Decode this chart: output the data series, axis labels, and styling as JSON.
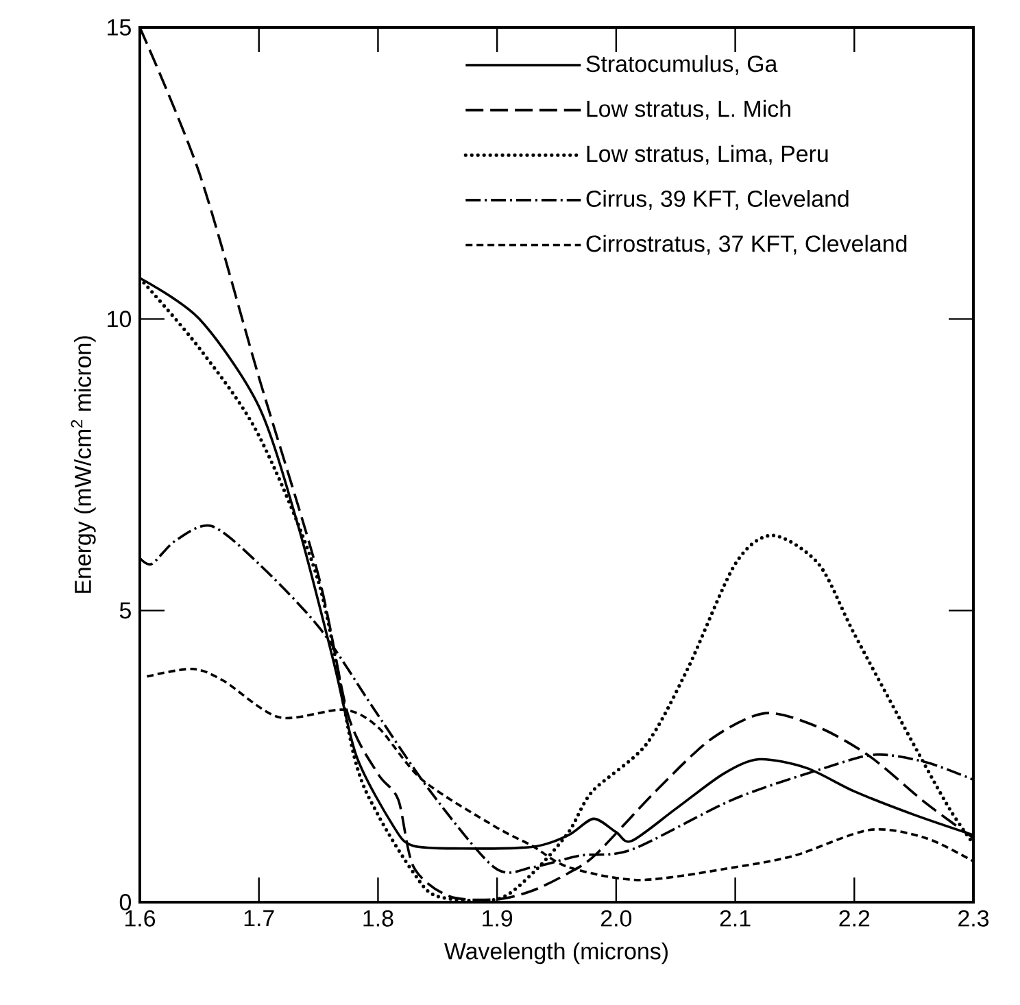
{
  "chart_data": {
    "type": "line",
    "xlabel": "Wavelength (microns)",
    "ylabel": "Energy (mW/cm$^{2}$ micron)",
    "xlim": [
      1.6,
      2.3
    ],
    "ylim": [
      0,
      15
    ],
    "xticks": [
      1.6,
      1.7,
      1.8,
      1.9,
      {
        "value": 2.0,
        "label": "2.0"
      },
      2.1,
      2.2,
      2.3
    ],
    "yticks": [
      0,
      5,
      10,
      15
    ],
    "legend": "top right",
    "grid": false,
    "tick_labels": "xy",
    "series": [
      {
        "name": "Stratocumulus, Ga",
        "color": "#000000",
        "line_style": "solid",
        "x": [
          1.6,
          1.65,
          1.7,
          1.733,
          1.763,
          1.782,
          1.813,
          1.829,
          1.87,
          1.93,
          1.96,
          1.981,
          2.0,
          2.013,
          2.05,
          2.09,
          2.12,
          2.16,
          2.2,
          2.25,
          2.3
        ],
        "values": [
          10.7,
          10.0,
          8.5,
          6.45,
          4.1,
          2.5,
          1.3,
          0.97,
          0.92,
          0.95,
          1.15,
          1.43,
          1.2,
          1.05,
          1.6,
          2.2,
          2.45,
          2.3,
          1.9,
          1.5,
          1.15
        ]
      },
      {
        "name": "Low stratus, L. Mich",
        "color": "#000000",
        "line_style": "long dashed",
        "x": [
          1.6,
          1.65,
          1.7,
          1.75,
          1.775,
          1.8,
          1.817,
          1.83,
          1.86,
          1.9,
          1.93,
          1.96,
          1.983,
          2.033,
          2.08,
          2.125,
          2.17,
          2.213,
          2.26,
          2.3
        ],
        "values": [
          15,
          12.5,
          9,
          5.6,
          3.2,
          2.2,
          1.76,
          0.6,
          0.1,
          0.05,
          0.2,
          0.5,
          0.82,
          1.9,
          2.8,
          3.24,
          3.0,
          2.5,
          1.7,
          1.1
        ]
      },
      {
        "name": "Low stratus, Lima, Peru",
        "color": "#000000",
        "line_style": "dotted",
        "x": [
          1.6,
          1.65,
          1.7,
          1.75,
          1.78,
          1.8,
          1.83,
          1.85,
          1.9,
          1.93,
          1.96,
          1.98,
          2.025,
          2.06,
          2.1,
          2.131,
          2.17,
          2.2,
          2.25,
          2.28,
          2.3
        ],
        "values": [
          10.7,
          9.5,
          8.0,
          5.5,
          2.5,
          1.5,
          0.5,
          0.1,
          0.05,
          0.5,
          1.2,
          1.9,
          2.7,
          4.0,
          5.8,
          6.29,
          5.8,
          4.6,
          2.7,
          1.6,
          1.0
        ]
      },
      {
        "name": "Cirrus, 39 KFT, Cleveland",
        "color": "#000000",
        "line_style": "dash dot",
        "x": [
          1.6,
          1.61,
          1.63,
          1.66,
          1.7,
          1.751,
          1.797,
          1.844,
          1.898,
          1.93,
          1.97,
          2.013,
          2.098,
          2.175,
          2.218,
          2.26,
          2.3
        ],
        "values": [
          5.9,
          5.8,
          6.2,
          6.45,
          5.8,
          4.7,
          3.3,
          1.9,
          0.59,
          0.6,
          0.8,
          0.9,
          1.76,
          2.3,
          2.53,
          2.4,
          2.1
        ]
      },
      {
        "name": "Cirrostratus, 37 KFT, Cleveland",
        "color": "#000000",
        "line_style": "dashed",
        "x": [
          1.606,
          1.644,
          1.67,
          1.717,
          1.771,
          1.8,
          1.837,
          1.898,
          1.93,
          1.96,
          2.02,
          2.1,
          2.15,
          2.213,
          2.26,
          2.3
        ],
        "values": [
          3.87,
          4.0,
          3.8,
          3.17,
          3.3,
          3.0,
          2.1,
          1.3,
          0.96,
          0.6,
          0.38,
          0.6,
          0.8,
          1.24,
          1.1,
          0.7
        ]
      }
    ]
  }
}
